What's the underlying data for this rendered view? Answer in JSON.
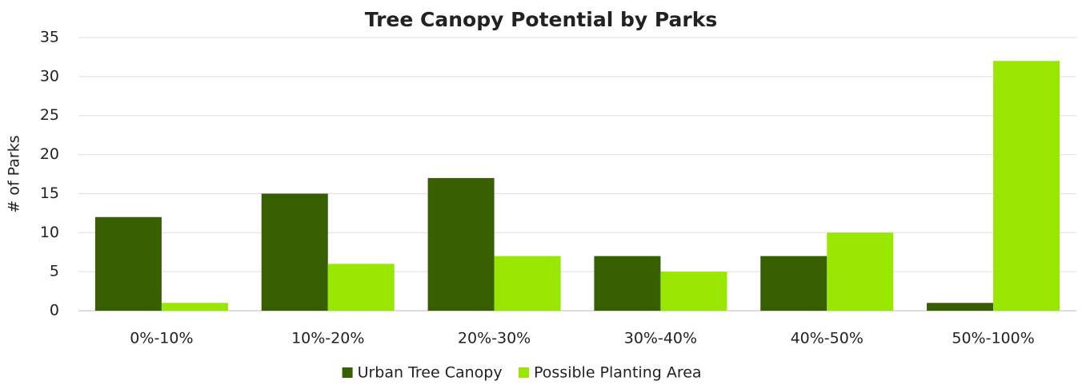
{
  "chart_data": {
    "type": "bar",
    "title": "Tree Canopy Potential by Parks",
    "y_label": "# of Parks",
    "categories": [
      "0%-10%",
      "10%-20%",
      "20%-30%",
      "30%-40%",
      "40%-50%",
      "50%-100%"
    ],
    "series": [
      {
        "name": "Urban Tree Canopy",
        "color": "#375f00",
        "values": [
          12,
          15,
          17,
          7,
          7,
          1
        ]
      },
      {
        "name": "Possible Planting Area",
        "color": "#99e600",
        "values": [
          1,
          6,
          7,
          5,
          10,
          32
        ]
      }
    ],
    "ylim": [
      0,
      35
    ],
    "yticks": [
      0,
      5,
      10,
      15,
      20,
      25,
      30,
      35
    ],
    "grid": true,
    "legend": "bottom"
  }
}
